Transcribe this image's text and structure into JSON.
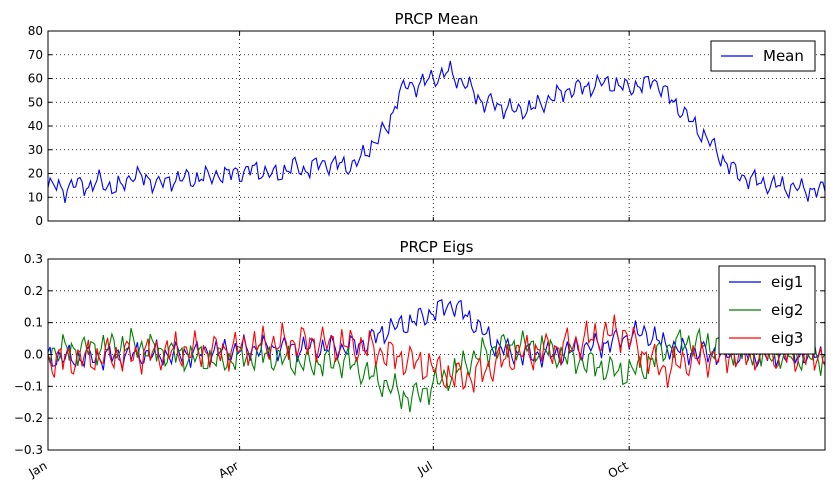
{
  "chart_data": [
    {
      "type": "line",
      "title": "PRCP Mean",
      "xlabel": "",
      "ylabel": "",
      "xlim": [
        0,
        365
      ],
      "ylim": [
        0,
        80
      ],
      "yticks": [
        "0",
        "10",
        "20",
        "30",
        "40",
        "50",
        "60",
        "70",
        "80"
      ],
      "grid": true,
      "legend_position": "top-right",
      "series": [
        {
          "name": "Mean",
          "color": "#0000ff",
          "knots_x": [
            0,
            4,
            8,
            12,
            16,
            20,
            24,
            28,
            32,
            36,
            40,
            44,
            48,
            52,
            56,
            60,
            64,
            68,
            72,
            76,
            80,
            84,
            88,
            92,
            96,
            100,
            104,
            108,
            112,
            116,
            120,
            124,
            128,
            132,
            136,
            140,
            144,
            148,
            152,
            156,
            160,
            164,
            168,
            172,
            176,
            180,
            184,
            188,
            192,
            196,
            200,
            204,
            208,
            212,
            216,
            220,
            224,
            228,
            232,
            236,
            240,
            244,
            248,
            252,
            256,
            260,
            264,
            268,
            272,
            276,
            280,
            284,
            288,
            292,
            296,
            300,
            304,
            308,
            312,
            316,
            320,
            324,
            328,
            332,
            336,
            340,
            344,
            348,
            352,
            356,
            360,
            365
          ],
          "knots_y": [
            14,
            15,
            13,
            15,
            16,
            14,
            17,
            15,
            13,
            16,
            20,
            18,
            17,
            16,
            16,
            18,
            18,
            17,
            19,
            18,
            20,
            19,
            21,
            20,
            22,
            21,
            20,
            19,
            22,
            23,
            21,
            23,
            24,
            24,
            24,
            23,
            24,
            27,
            32,
            36,
            40,
            52,
            57,
            57,
            58,
            60,
            61,
            63,
            60,
            58,
            54,
            50,
            50,
            48,
            48,
            46,
            47,
            48,
            49,
            52,
            53,
            55,
            56,
            56,
            57,
            58,
            58,
            57,
            56,
            57,
            57,
            60,
            56,
            52,
            48,
            44,
            40,
            36,
            32,
            27,
            23,
            20,
            18,
            17,
            16,
            15,
            15,
            14,
            14,
            13,
            13,
            13
          ]
        }
      ]
    },
    {
      "type": "line",
      "title": "PRCP Eigs",
      "xlabel": "",
      "ylabel": "",
      "xlim": [
        0,
        365
      ],
      "ylim": [
        -0.3,
        0.3
      ],
      "yticks": [
        "−0.3",
        "−0.2",
        "−0.1",
        "0.0",
        "0.1",
        "0.2",
        "0.3"
      ],
      "grid": true,
      "legend_position": "top-right",
      "series": [
        {
          "name": "eig1",
          "color": "#0000ff",
          "knots_x": [
            0,
            20,
            40,
            60,
            80,
            100,
            120,
            140,
            150,
            160,
            170,
            180,
            190,
            200,
            210,
            220,
            230,
            240,
            250,
            260,
            270,
            280,
            290,
            300,
            320,
            340,
            365
          ],
          "knots_y": [
            -0.01,
            -0.01,
            0.0,
            0.0,
            0.01,
            0.02,
            0.02,
            0.02,
            0.04,
            0.08,
            0.1,
            0.13,
            0.16,
            0.1,
            0.03,
            0.0,
            0.0,
            0.0,
            0.02,
            0.03,
            0.05,
            0.07,
            0.03,
            0.01,
            0.0,
            0.0,
            0.0
          ]
        },
        {
          "name": "eig2",
          "color": "#008000",
          "knots_x": [
            0,
            20,
            40,
            60,
            80,
            100,
            120,
            140,
            150,
            160,
            170,
            180,
            190,
            200,
            210,
            220,
            230,
            240,
            250,
            260,
            270,
            280,
            290,
            300,
            320,
            340,
            365
          ],
          "knots_y": [
            0.01,
            0.02,
            0.03,
            0.0,
            -0.02,
            0.0,
            -0.03,
            -0.02,
            -0.06,
            -0.1,
            -0.14,
            -0.1,
            -0.06,
            -0.01,
            0.02,
            0.03,
            0.02,
            0.0,
            -0.02,
            -0.04,
            -0.06,
            -0.04,
            0.02,
            0.04,
            0.02,
            0.0,
            -0.01
          ]
        },
        {
          "name": "eig3",
          "color": "#ff0000",
          "knots_x": [
            0,
            20,
            40,
            60,
            80,
            100,
            120,
            140,
            150,
            160,
            170,
            180,
            190,
            200,
            210,
            220,
            230,
            240,
            250,
            260,
            270,
            280,
            290,
            300,
            320,
            340,
            365
          ],
          "knots_y": [
            -0.02,
            -0.01,
            0.0,
            0.01,
            0.01,
            0.03,
            0.04,
            0.03,
            0.02,
            0.0,
            -0.02,
            -0.04,
            -0.07,
            -0.07,
            -0.03,
            0.0,
            0.01,
            0.02,
            0.04,
            0.06,
            0.07,
            0.0,
            -0.05,
            -0.02,
            0.0,
            0.0,
            0.0
          ]
        }
      ]
    }
  ],
  "x_axis": {
    "ticks": [
      {
        "label": "Jan",
        "day": 0
      },
      {
        "label": "Apr",
        "day": 90
      },
      {
        "label": "Jul",
        "day": 181
      },
      {
        "label": "Oct",
        "day": 273
      }
    ]
  }
}
